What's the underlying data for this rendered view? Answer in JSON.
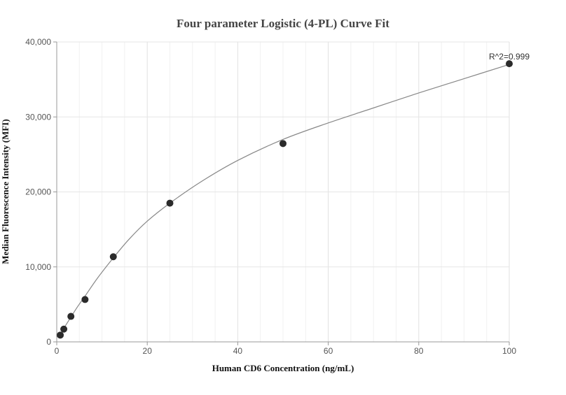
{
  "chart_data": {
    "type": "scatter",
    "title": "Four parameter Logistic (4-PL) Curve Fit",
    "xlabel": "Human CD6 Concentration (ng/mL)",
    "ylabel": "Median Fluorescence Intensity (MFI)",
    "xlim": [
      0,
      100
    ],
    "ylim": [
      0,
      40000
    ],
    "x_ticks": [
      0,
      20,
      40,
      60,
      80,
      100
    ],
    "y_ticks": [
      0,
      10000,
      20000,
      30000,
      40000
    ],
    "x_tick_labels": [
      "0",
      "20",
      "40",
      "60",
      "80",
      "100"
    ],
    "y_tick_labels": [
      "0",
      "10,000",
      "20,000",
      "30,000",
      "40,000"
    ],
    "grid": true,
    "points": {
      "x": [
        0.78,
        1.56,
        3.13,
        6.25,
        12.5,
        25,
        50,
        100
      ],
      "y": [
        900,
        1700,
        3400,
        5650,
        11350,
        18500,
        26450,
        37100
      ]
    },
    "fit_curve": {
      "model": "4PL",
      "x": [
        0.78,
        1.56,
        3.13,
        4.5,
        6.25,
        9,
        12.5,
        16,
        20,
        25,
        32,
        40,
        50,
        60,
        70,
        80,
        90,
        100
      ],
      "y": [
        1000,
        1800,
        3300,
        4600,
        6100,
        8500,
        11200,
        13700,
        16100,
        18500,
        21400,
        24200,
        27000,
        29200,
        31200,
        33200,
        35100,
        37000
      ]
    },
    "annotation": "R^2=0.999",
    "colors": {
      "point": "#2b2b2b",
      "curve": "#888888",
      "grid": "#e6e6e6",
      "axis": "#999999"
    }
  }
}
